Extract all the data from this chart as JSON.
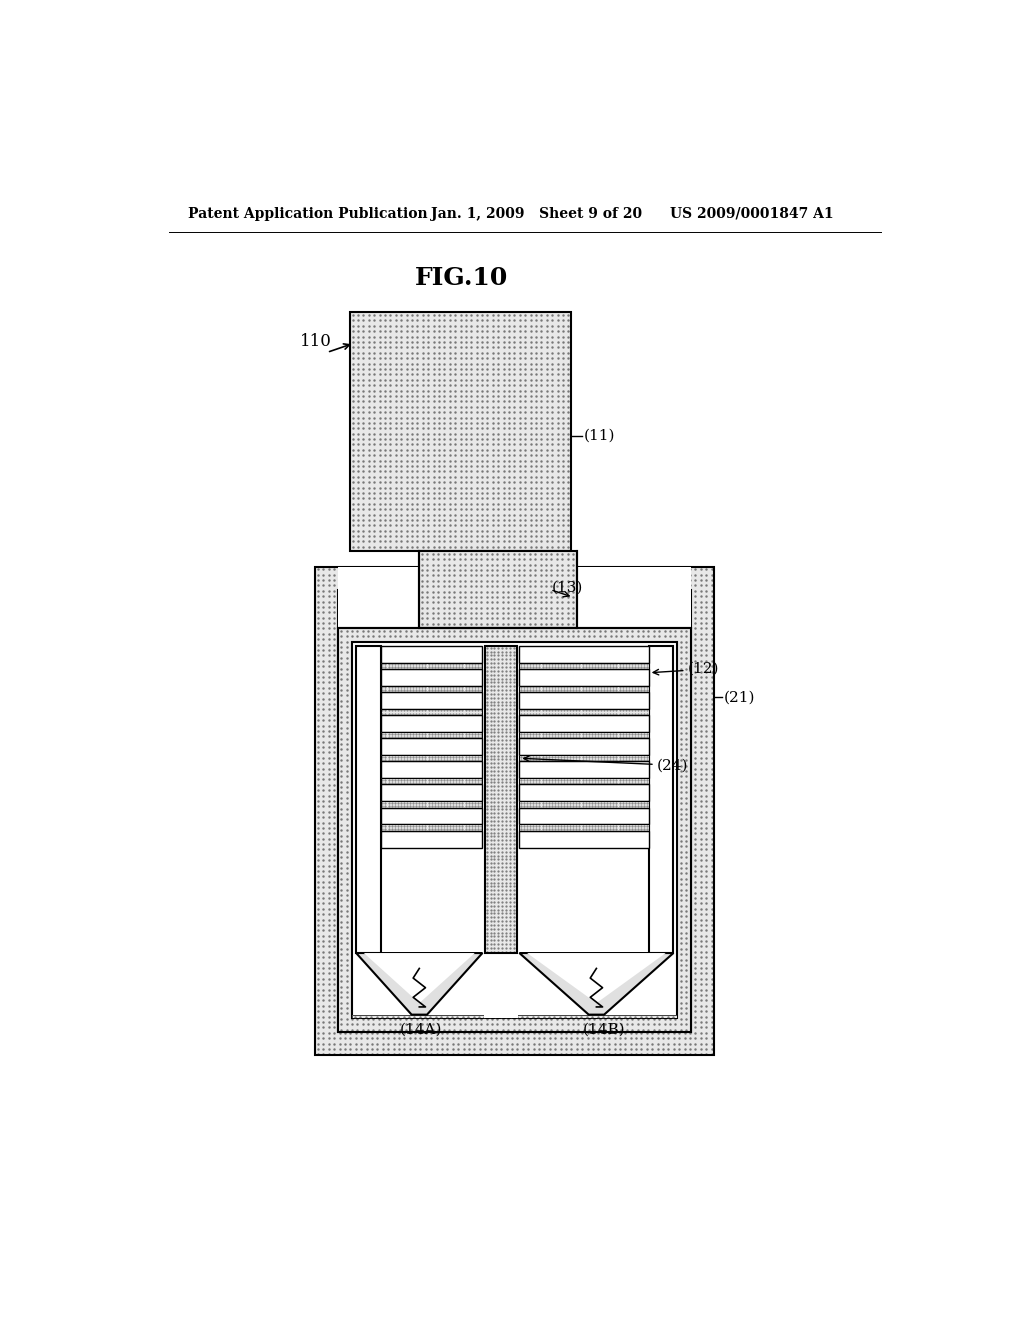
{
  "title": "FIG.10",
  "header_left": "Patent Application Publication",
  "header_mid": "Jan. 1, 2009   Sheet 9 of 20",
  "header_right": "US 2009/0001847 A1",
  "bg_color": "#ffffff",
  "stipple_color": "#d0d0d0",
  "white_fill": "#ffffff",
  "line_color": "#000000",
  "label_110": "110",
  "label_11": "(11)",
  "label_13": "(13)",
  "label_21": "(21)",
  "label_12": "(12)",
  "label_24": "(24)",
  "label_14A": "(14A)",
  "label_14B": "(14B)"
}
